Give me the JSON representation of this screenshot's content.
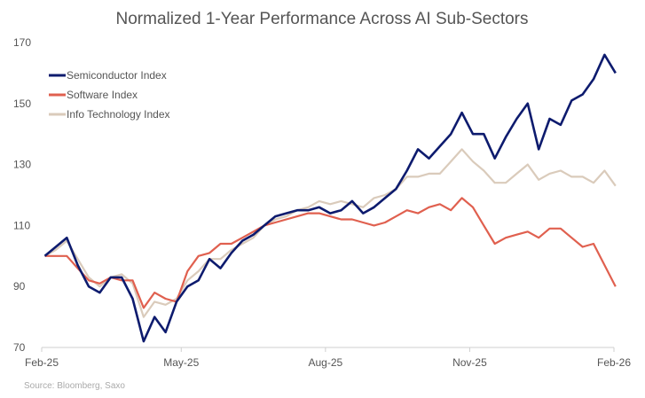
{
  "chart_data": {
    "type": "line",
    "title": "Normalized 1-Year Performance Across AI Sub-Sectors",
    "source": "Source: Bloomberg, Saxo",
    "xlabel": "",
    "ylabel": "",
    "ylim": [
      70,
      170
    ],
    "yticks": [
      70,
      90,
      110,
      130,
      150,
      170
    ],
    "xticks": [
      {
        "date": "2025-02-01",
        "label": "Feb-25"
      },
      {
        "date": "2025-05-01",
        "label": "May-25"
      },
      {
        "date": "2025-08-01",
        "label": "Aug-25"
      },
      {
        "date": "2025-11-01",
        "label": "Nov-25"
      },
      {
        "date": "2026-02-01",
        "label": "Feb-26"
      }
    ],
    "xlim": [
      "2025-02-01",
      "2026-02-03"
    ],
    "grid": false,
    "legend_position": "top-left",
    "x": [
      "2025-02-03",
      "2025-02-10",
      "2025-02-17",
      "2025-02-24",
      "2025-03-03",
      "2025-03-10",
      "2025-03-17",
      "2025-03-24",
      "2025-03-31",
      "2025-04-07",
      "2025-04-14",
      "2025-04-21",
      "2025-04-28",
      "2025-05-05",
      "2025-05-12",
      "2025-05-19",
      "2025-05-26",
      "2025-06-02",
      "2025-06-09",
      "2025-06-16",
      "2025-06-23",
      "2025-06-30",
      "2025-07-07",
      "2025-07-14",
      "2025-07-21",
      "2025-07-28",
      "2025-08-04",
      "2025-08-11",
      "2025-08-18",
      "2025-08-25",
      "2025-09-01",
      "2025-09-08",
      "2025-09-15",
      "2025-09-22",
      "2025-09-29",
      "2025-10-06",
      "2025-10-13",
      "2025-10-20",
      "2025-10-27",
      "2025-11-03",
      "2025-11-10",
      "2025-11-17",
      "2025-11-24",
      "2025-12-01",
      "2025-12-08",
      "2025-12-15",
      "2025-12-22",
      "2025-12-29",
      "2026-01-05",
      "2026-01-12",
      "2026-01-19",
      "2026-01-26",
      "2026-02-02"
    ],
    "series": [
      {
        "name": "Semiconductor Index",
        "color": "#0d1b6e",
        "values": [
          100,
          103,
          106,
          97,
          90,
          88,
          93,
          93,
          86,
          72,
          80,
          75,
          85,
          90,
          92,
          99,
          96,
          101,
          105,
          107,
          110,
          113,
          114,
          115,
          115,
          116,
          114,
          115,
          118,
          114,
          116,
          119,
          122,
          128,
          135,
          132,
          136,
          140,
          147,
          140,
          140,
          132,
          139,
          145,
          150,
          135,
          145,
          143,
          151,
          153,
          158,
          166,
          160
        ]
      },
      {
        "name": "Software Index",
        "color": "#e0604f",
        "values": [
          100,
          100,
          100,
          96,
          92,
          91,
          93,
          92,
          92,
          83,
          88,
          86,
          85,
          95,
          100,
          101,
          104,
          104,
          106,
          108,
          110,
          111,
          112,
          113,
          114,
          114,
          113,
          112,
          112,
          111,
          110,
          111,
          113,
          115,
          114,
          116,
          117,
          115,
          119,
          116,
          110,
          104,
          106,
          107,
          108,
          106,
          109,
          109,
          106,
          103,
          104,
          97,
          90
        ]
      },
      {
        "name": "Info Technology Index",
        "color": "#dacbbb",
        "values": [
          100,
          102,
          105,
          99,
          93,
          90,
          93,
          94,
          91,
          80,
          85,
          84,
          86,
          92,
          95,
          99,
          99,
          102,
          104,
          106,
          110,
          112,
          113,
          115,
          116,
          118,
          117,
          118,
          117,
          116,
          119,
          120,
          122,
          126,
          126,
          127,
          127,
          131,
          135,
          131,
          128,
          124,
          124,
          127,
          130,
          125,
          127,
          128,
          126,
          126,
          124,
          128,
          123
        ]
      }
    ]
  }
}
